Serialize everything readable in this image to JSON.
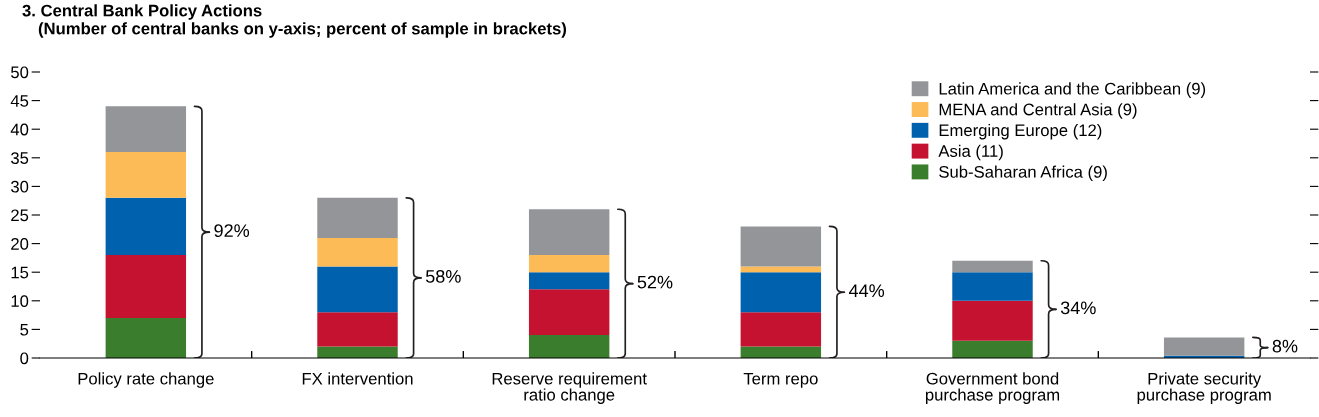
{
  "chart_data": {
    "type": "bar",
    "stacked": true,
    "title": "3. Central Bank Policy Actions",
    "subtitle": "(Number of central banks on y-axis; percent of sample in brackets)",
    "categories": [
      "Policy rate change",
      "FX intervention",
      "Reserve requirement\nratio change",
      "Term repo",
      "Government bond\npurchase program",
      "Private security\npurchase program"
    ],
    "series": [
      {
        "name": "Sub-Saharan Africa (9)",
        "color": "#3a7d2c",
        "values": [
          7,
          2,
          4,
          2,
          3,
          0
        ]
      },
      {
        "name": "Asia (11)",
        "color": "#c41230",
        "values": [
          11,
          6,
          8,
          6,
          7,
          0
        ]
      },
      {
        "name": "Emerging Europe (12)",
        "color": "#0062ae",
        "values": [
          10,
          8,
          3,
          7,
          5,
          0.4
        ]
      },
      {
        "name": "MENA and Central Asia (9)",
        "color": "#fdbb57",
        "values": [
          8,
          5,
          3,
          1,
          0,
          0
        ]
      },
      {
        "name": "Latin America and the Caribbean (9)",
        "color": "#939598",
        "values": [
          8,
          7,
          8,
          7,
          2,
          3.2
        ]
      }
    ],
    "annotations": [
      "92%",
      "58%",
      "52%",
      "44%",
      "34%",
      "8%"
    ],
    "ylim": [
      0,
      50
    ],
    "yticks": [
      0,
      5,
      10,
      15,
      20,
      25,
      30,
      35,
      40,
      45,
      50
    ],
    "grid": false,
    "legend": "top right"
  }
}
